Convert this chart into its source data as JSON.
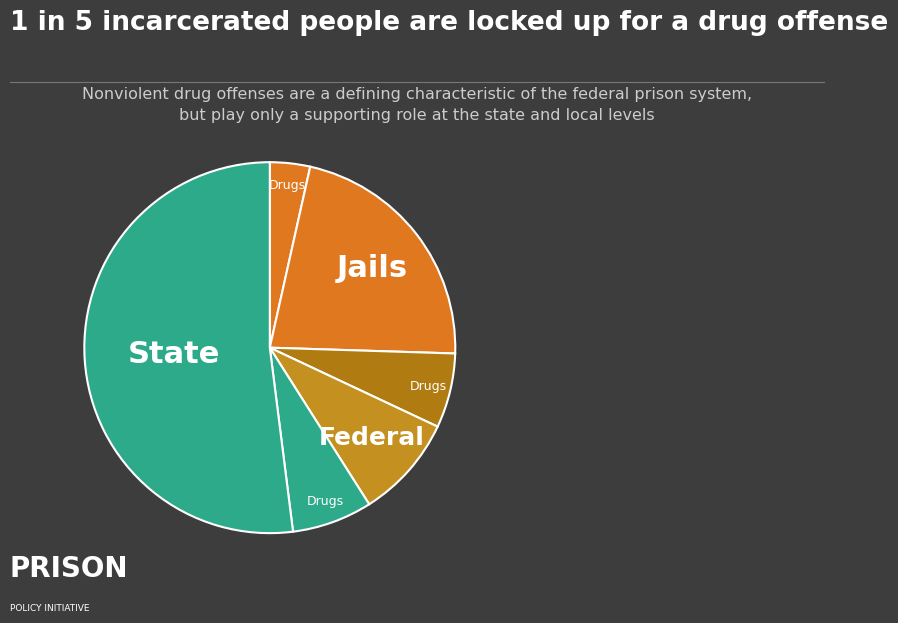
{
  "background_color": "#3d3d3d",
  "title": "1 in 5 incarcerated people are locked up for a drug offense",
  "subtitle": "Nonviolent drug offenses are a defining characteristic of the federal prison system,\nbut play only a supporting role at the state and local levels",
  "title_color": "#ffffff",
  "subtitle_color": "#cccccc",
  "title_fontsize": 19,
  "subtitle_fontsize": 11.5,
  "slices": [
    {
      "label": "Jails Drugs",
      "value": 3.5,
      "color": "#e07820",
      "text_label": "Drugs",
      "text_size": 9
    },
    {
      "label": "Jails",
      "value": 22.0,
      "color": "#e07820",
      "text_label": "Jails",
      "text_size": 22
    },
    {
      "label": "Federal Drugs",
      "value": 6.5,
      "color": "#b07b10",
      "text_label": "Drugs",
      "text_size": 9
    },
    {
      "label": "Federal",
      "value": 9.0,
      "color": "#c49020",
      "text_label": "Federal",
      "text_size": 18
    },
    {
      "label": "State Drugs",
      "value": 7.0,
      "color": "#2daa8a",
      "text_label": "Drugs",
      "text_size": 9
    },
    {
      "label": "State",
      "value": 52.0,
      "color": "#2daa8a",
      "text_label": "State",
      "text_size": 22
    }
  ],
  "wedge_linewidth": 1.5,
  "wedge_linecolor": "#ffffff",
  "footer_text_big": "PRISON",
  "footer_text_small": "POLICY INITIATIVE"
}
